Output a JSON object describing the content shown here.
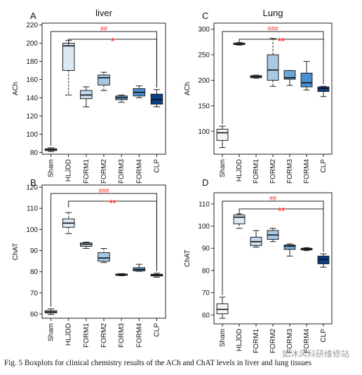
{
  "caption": "Fig. 5 Boxplots for clinical chemistry results of the ACh and ChAT levels in liver and lung tissues",
  "watermark": "如沐风科研维修站",
  "colors": {
    "Sham": "#f2f6fb",
    "HLJDD": "#dbe8f5",
    "FORM1": "#c5daef",
    "FORM2": "#a6c9e6",
    "FORM3": "#6aa6d8",
    "FORM4": "#4a8fcf",
    "CLP": "#0b3f85",
    "annotation": "#ff2a2a"
  },
  "chart_data": [
    {
      "panel": "A",
      "title": "liver",
      "type": "boxplot",
      "ylabel": "ACh",
      "ylim": [
        78,
        222
      ],
      "yticks": [
        80,
        100,
        120,
        140,
        160,
        180,
        200,
        220
      ],
      "categories": [
        "Sham",
        "HLJDD",
        "FORM1",
        "FORM2",
        "FORM3",
        "FORM4",
        "CLP"
      ],
      "boxes": [
        {
          "min": 81,
          "q1": 82,
          "median": 83,
          "q3": 84,
          "max": 85
        },
        {
          "min": 143,
          "q1": 170,
          "median": 197,
          "q3": 200,
          "max": 203
        },
        {
          "min": 130,
          "q1": 139,
          "median": 143,
          "q3": 148,
          "max": 152
        },
        {
          "min": 148,
          "q1": 154,
          "median": 162,
          "q3": 165,
          "max": 168
        },
        {
          "min": 135,
          "q1": 138,
          "median": 140,
          "q3": 142,
          "max": 143
        },
        {
          "min": 140,
          "q1": 142,
          "median": 146,
          "q3": 150,
          "max": 153
        },
        {
          "min": 130,
          "q1": 133,
          "median": 138,
          "q3": 144,
          "max": 149
        }
      ],
      "annotations": [
        {
          "label": "##",
          "from": "Sham",
          "to": "CLP",
          "level": 1
        },
        {
          "label": "*",
          "from": "HLJDD",
          "to": "CLP",
          "level": 2
        }
      ]
    },
    {
      "panel": "C",
      "title": "Lung",
      "type": "boxplot",
      "ylabel": "ACh",
      "ylim": [
        55,
        312
      ],
      "yticks": [
        100,
        150,
        200,
        250,
        300
      ],
      "categories": [
        "Sham",
        "HLJDD",
        "FORM1",
        "FORM2",
        "FORM3",
        "FORM4",
        "CLP"
      ],
      "boxes": [
        {
          "min": 68,
          "q1": 82,
          "median": 97,
          "q3": 104,
          "max": 110
        },
        {
          "min": 269,
          "q1": 270,
          "median": 271,
          "q3": 273,
          "max": 274
        },
        {
          "min": 204,
          "q1": 205,
          "median": 207,
          "q3": 209,
          "max": 210
        },
        {
          "min": 188,
          "q1": 200,
          "median": 220,
          "q3": 250,
          "max": 282
        },
        {
          "min": 190,
          "q1": 202,
          "median": 205,
          "q3": 219,
          "max": 219
        },
        {
          "min": 181,
          "q1": 187,
          "median": 195,
          "q3": 214,
          "max": 237
        },
        {
          "min": 168,
          "q1": 178,
          "median": 184,
          "q3": 187,
          "max": 188
        }
      ],
      "annotations": [
        {
          "label": "###",
          "from": "Sham",
          "to": "CLP",
          "level": 1
        },
        {
          "label": "**",
          "from": "HLJDD",
          "to": "CLP",
          "level": 2
        }
      ]
    },
    {
      "panel": "B",
      "title": "",
      "type": "boxplot",
      "ylabel": "ChAT",
      "ylim": [
        58,
        121
      ],
      "yticks": [
        60,
        70,
        80,
        90,
        100,
        110,
        120
      ],
      "categories": [
        "Sham",
        "HLJDD",
        "FORM1",
        "FORM2",
        "FORM3",
        "FORM4",
        "CLP"
      ],
      "boxes": [
        {
          "min": 59.8,
          "q1": 60.5,
          "median": 61,
          "q3": 61.6,
          "max": 62.4
        },
        {
          "min": 98,
          "q1": 101,
          "median": 103,
          "q3": 105,
          "max": 108
        },
        {
          "min": 91,
          "q1": 92,
          "median": 93,
          "q3": 93.6,
          "max": 94
        },
        {
          "min": 84.3,
          "q1": 85,
          "median": 86.5,
          "q3": 89,
          "max": 91
        },
        {
          "min": 78.1,
          "q1": 78.3,
          "median": 78.6,
          "q3": 78.9,
          "max": 79.1
        },
        {
          "min": 80.2,
          "q1": 80.4,
          "median": 81,
          "q3": 81.9,
          "max": 83.5
        },
        {
          "min": 77.4,
          "q1": 78,
          "median": 78.4,
          "q3": 78.8,
          "max": 79.3
        }
      ],
      "annotations": [
        {
          "label": "###",
          "from": "Sham",
          "to": "CLP",
          "level": 1
        },
        {
          "label": "**",
          "from": "HLJDD",
          "to": "CLP",
          "level": 2
        }
      ]
    },
    {
      "panel": "D",
      "title": "",
      "type": "boxplot",
      "ylabel": "ChAT",
      "ylim": [
        56,
        115
      ],
      "yticks": [
        60,
        70,
        80,
        90,
        100,
        110
      ],
      "categories": [
        "Sham",
        "HLJDD",
        "FORM1",
        "FORM2",
        "FORM3",
        "FORM4",
        "CLP"
      ],
      "boxes": [
        {
          "min": 58.5,
          "q1": 60.5,
          "median": 62.5,
          "q3": 65,
          "max": 68
        },
        {
          "min": 99,
          "q1": 101,
          "median": 104,
          "q3": 105,
          "max": 105.5
        },
        {
          "min": 90.5,
          "q1": 91.2,
          "median": 93,
          "q3": 95,
          "max": 98
        },
        {
          "min": 93,
          "q1": 94,
          "median": 96,
          "q3": 98,
          "max": 99
        },
        {
          "min": 86.5,
          "q1": 89.5,
          "median": 91,
          "q3": 91.5,
          "max": 92
        },
        {
          "min": 89,
          "q1": 89.3,
          "median": 89.7,
          "q3": 90,
          "max": 90.3
        },
        {
          "min": 81.5,
          "q1": 83,
          "median": 85,
          "q3": 86.5,
          "max": 87.5
        }
      ],
      "annotations": [
        {
          "label": "##",
          "from": "Sham",
          "to": "CLP",
          "level": 1
        },
        {
          "label": "**",
          "from": "HLJDD",
          "to": "CLP",
          "level": 2
        }
      ]
    }
  ]
}
